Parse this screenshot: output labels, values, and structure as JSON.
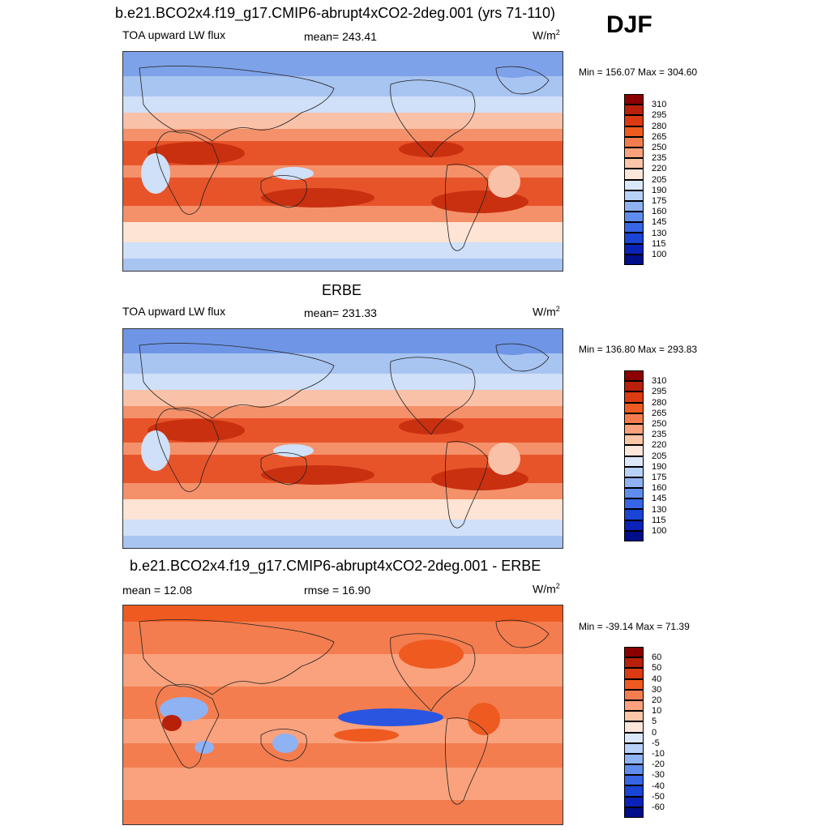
{
  "season": "DJF",
  "panels": [
    {
      "title": "b.e21.BCO2x4.f19_g17.CMIP6-abrupt4xCO2-2deg.001 (yrs 71-110)",
      "left_label": "TOA upward LW flux",
      "center_label": "mean= 243.41",
      "units_base": "W/m",
      "units_exp": "2",
      "minmax": "Min = 156.07 Max = 304.60",
      "legend_levels": [
        "310",
        "295",
        "280",
        "265",
        "250",
        "235",
        "220",
        "205",
        "190",
        "175",
        "160",
        "145",
        "130",
        "115",
        "100"
      ],
      "legend_colors": [
        "#8b0000",
        "#b8200a",
        "#db3a12",
        "#ee5a20",
        "#f47d4f",
        "#f9a27d",
        "#fbc6a8",
        "#fde7da",
        "#dbe8fb",
        "#b8d1f8",
        "#8fb2f3",
        "#5f8ded",
        "#3666e6",
        "#1a44d6",
        "#0a22b8",
        "#000e8a"
      ],
      "map_palette": {
        "very_warm": "#c93010",
        "warm": "#e8542a",
        "mid": "#f4916a",
        "light": "#f9c2a8",
        "neutral": "#fde4d5",
        "cool": "#cfe0f8",
        "cold": "#a8c4f1",
        "very_cold": "#7ea2e9"
      }
    },
    {
      "title": "ERBE",
      "left_label": "TOA upward LW flux",
      "center_label": "mean= 231.33",
      "units_base": "W/m",
      "units_exp": "2",
      "minmax": "Min = 136.80 Max = 293.83",
      "legend_levels": [
        "310",
        "295",
        "280",
        "265",
        "250",
        "235",
        "220",
        "205",
        "190",
        "175",
        "160",
        "145",
        "130",
        "115",
        "100"
      ],
      "legend_colors": [
        "#8b0000",
        "#b8200a",
        "#db3a12",
        "#ee5a20",
        "#f47d4f",
        "#f9a27d",
        "#fbc6a8",
        "#fde7da",
        "#dbe8fb",
        "#b8d1f8",
        "#8fb2f3",
        "#5f8ded",
        "#3666e6",
        "#1a44d6",
        "#0a22b8",
        "#000e8a"
      ],
      "map_palette": {
        "very_warm": "#c93010",
        "warm": "#e8542a",
        "mid": "#f4916a",
        "light": "#f9c2a8",
        "neutral": "#fde4d5",
        "cool": "#cfe0f8",
        "cold": "#a8c4f1",
        "very_cold": "#6f96e6"
      }
    },
    {
      "title": "b.e21.BCO2x4.f19_g17.CMIP6-abrupt4xCO2-2deg.001 - ERBE",
      "left_label": "mean =  12.08",
      "center_label": "rmse =  16.90",
      "units_base": "W/m",
      "units_exp": "2",
      "minmax": "Min = -39.14 Max =  71.39",
      "legend_levels": [
        "60",
        "50",
        "40",
        "30",
        "20",
        "10",
        "5",
        "0",
        "-5",
        "-10",
        "-20",
        "-30",
        "-40",
        "-50",
        "-60"
      ],
      "legend_colors": [
        "#8b0000",
        "#b8200a",
        "#db3a12",
        "#ee5a20",
        "#f47d4f",
        "#f9a27d",
        "#fbc6a8",
        "#fde7da",
        "#dbe8fb",
        "#b8d1f8",
        "#8fb2f3",
        "#5f8ded",
        "#3666e6",
        "#1a44d6",
        "#0a22b8",
        "#000e8a"
      ],
      "map_palette": {
        "very_warm": "#b8200a",
        "warm": "#ee5a20",
        "mid": "#f47d4f",
        "light": "#f9a27d",
        "neutral": "#fbc6a8",
        "cool": "#dbe8fb",
        "cold": "#8fb2f3",
        "very_cold": "#2a55e0"
      }
    }
  ]
}
